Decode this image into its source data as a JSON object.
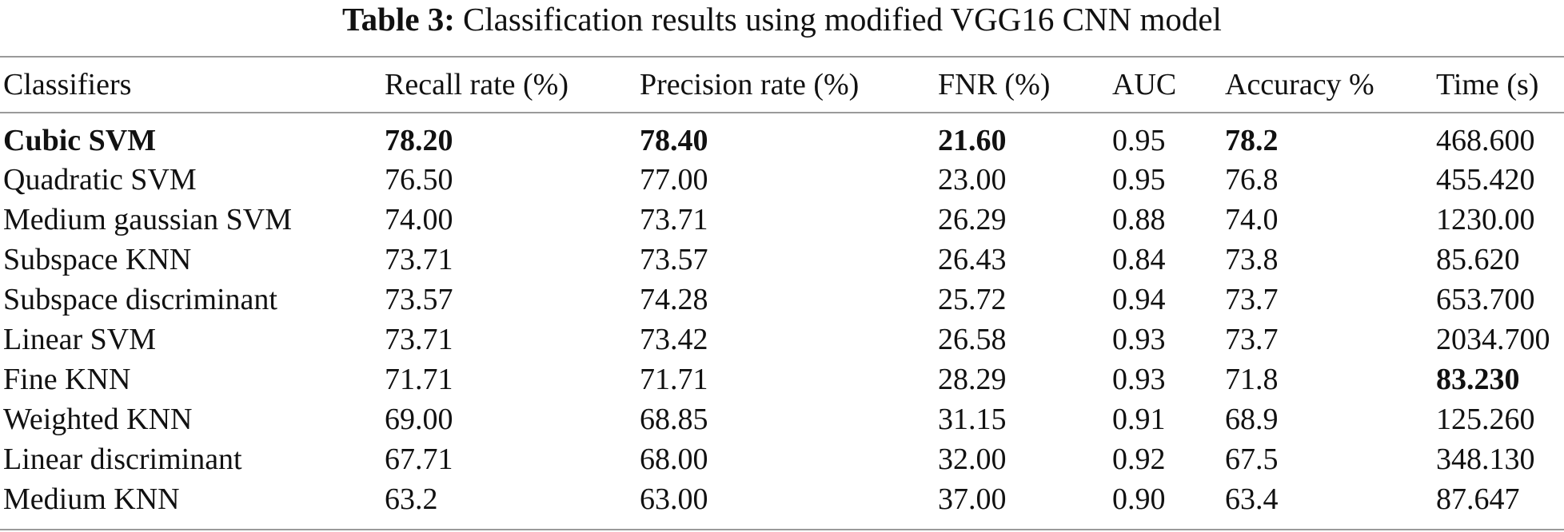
{
  "caption": {
    "label": "Table 3:",
    "text": "Classification results using modified VGG16 CNN model"
  },
  "table": {
    "headers": [
      "Classifiers",
      "Recall rate (%)",
      "Precision rate (%)",
      "FNR (%)",
      "AUC",
      "Accuracy %",
      "Time (s)"
    ],
    "rows": [
      [
        "Cubic SVM",
        "78.20",
        "78.40",
        "21.60",
        "0.95",
        "78.2",
        "468.600"
      ],
      [
        "Quadratic SVM",
        "76.50",
        "77.00",
        "23.00",
        "0.95",
        "76.8",
        "455.420"
      ],
      [
        "Medium gaussian SVM",
        "74.00",
        "73.71",
        "26.29",
        "0.88",
        "74.0",
        "1230.00"
      ],
      [
        "Subspace KNN",
        "73.71",
        "73.57",
        "26.43",
        "0.84",
        "73.8",
        "85.620"
      ],
      [
        "Subspace discriminant",
        "73.57",
        "74.28",
        "25.72",
        "0.94",
        "73.7",
        "653.700"
      ],
      [
        "Linear SVM",
        "73.71",
        "73.42",
        "26.58",
        "0.93",
        "73.7",
        "2034.700"
      ],
      [
        "Fine KNN",
        "71.71",
        "71.71",
        "28.29",
        "0.93",
        "71.8",
        "83.230"
      ],
      [
        "Weighted KNN",
        "69.00",
        "68.85",
        "31.15",
        "0.91",
        "68.9",
        "125.260"
      ],
      [
        "Linear discriminant",
        "67.71",
        "68.00",
        "32.00",
        "0.92",
        "67.5",
        "348.130"
      ],
      [
        "Medium KNN",
        "63.2",
        "63.00",
        "37.00",
        "0.90",
        "63.4",
        "87.647"
      ]
    ],
    "bold_cells": [
      [
        0,
        0
      ],
      [
        0,
        1
      ],
      [
        0,
        2
      ],
      [
        0,
        3
      ],
      [
        0,
        5
      ],
      [
        6,
        6
      ]
    ]
  }
}
